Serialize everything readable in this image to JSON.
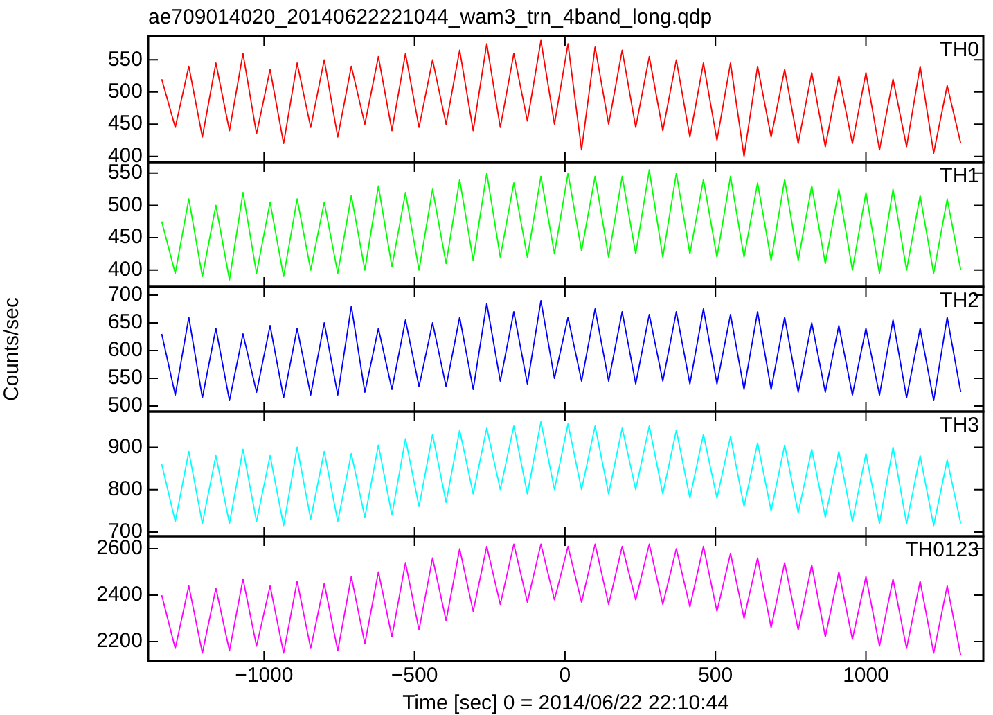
{
  "chart_data": [
    {
      "type": "line",
      "title": "ae709014020_20140622221044_wam3_trn_4band_long.qdp",
      "tick_labels": "y",
      "xlim": [
        -1385,
        1390
      ],
      "ylim": [
        391,
        587
      ],
      "yticks": [
        400,
        450,
        500,
        550
      ],
      "x": [
        -1340,
        -1295,
        -1250,
        -1205,
        -1160,
        -1115,
        -1070,
        -1025,
        -980,
        -935,
        -890,
        -845,
        -800,
        -755,
        -710,
        -665,
        -620,
        -575,
        -530,
        -485,
        -440,
        -395,
        -350,
        -305,
        -260,
        -215,
        -170,
        -125,
        -80,
        -35,
        10,
        55,
        100,
        145,
        190,
        235,
        280,
        325,
        370,
        415,
        460,
        505,
        550,
        595,
        640,
        685,
        730,
        775,
        820,
        865,
        910,
        955,
        1000,
        1045,
        1090,
        1135,
        1180,
        1225,
        1270,
        1315
      ],
      "series": [
        {
          "name": "TH0",
          "color": "#ff0000",
          "values": [
            520,
            445,
            540,
            430,
            545,
            440,
            560,
            435,
            535,
            420,
            545,
            445,
            550,
            430,
            540,
            450,
            555,
            440,
            560,
            445,
            550,
            450,
            565,
            440,
            575,
            445,
            560,
            455,
            580,
            450,
            575,
            410,
            570,
            450,
            565,
            445,
            555,
            440,
            550,
            430,
            545,
            425,
            545,
            400,
            540,
            430,
            535,
            420,
            530,
            415,
            525,
            420,
            530,
            410,
            520,
            415,
            540,
            405,
            510,
            420
          ]
        }
      ]
    },
    {
      "type": "line",
      "tick_labels": "y",
      "xlim": [
        -1385,
        1390
      ],
      "ylim": [
        374,
        567
      ],
      "yticks": [
        400,
        450,
        500,
        550
      ],
      "x": [
        -1340,
        -1295,
        -1250,
        -1205,
        -1160,
        -1115,
        -1070,
        -1025,
        -980,
        -935,
        -890,
        -845,
        -800,
        -755,
        -710,
        -665,
        -620,
        -575,
        -530,
        -485,
        -440,
        -395,
        -350,
        -305,
        -260,
        -215,
        -170,
        -125,
        -80,
        -35,
        10,
        55,
        100,
        145,
        190,
        235,
        280,
        325,
        370,
        415,
        460,
        505,
        550,
        595,
        640,
        685,
        730,
        775,
        820,
        865,
        910,
        955,
        1000,
        1045,
        1090,
        1135,
        1180,
        1225,
        1270,
        1315
      ],
      "series": [
        {
          "name": "TH1",
          "color": "#00ff00",
          "values": [
            475,
            395,
            510,
            390,
            500,
            385,
            520,
            395,
            505,
            390,
            510,
            400,
            505,
            395,
            515,
            400,
            530,
            405,
            520,
            400,
            525,
            410,
            540,
            415,
            550,
            420,
            535,
            420,
            545,
            425,
            550,
            430,
            545,
            420,
            545,
            425,
            555,
            420,
            550,
            425,
            540,
            420,
            545,
            420,
            535,
            415,
            540,
            415,
            530,
            410,
            525,
            400,
            520,
            395,
            525,
            400,
            515,
            395,
            510,
            400
          ]
        }
      ]
    },
    {
      "type": "line",
      "tick_labels": "y",
      "ylabel": "Counts/sec",
      "xlim": [
        -1385,
        1390
      ],
      "ylim": [
        490,
        715
      ],
      "yticks": [
        500,
        550,
        600,
        650,
        700
      ],
      "x": [
        -1340,
        -1295,
        -1250,
        -1205,
        -1160,
        -1115,
        -1070,
        -1025,
        -980,
        -935,
        -890,
        -845,
        -800,
        -755,
        -710,
        -665,
        -620,
        -575,
        -530,
        -485,
        -440,
        -395,
        -350,
        -305,
        -260,
        -215,
        -170,
        -125,
        -80,
        -35,
        10,
        55,
        100,
        145,
        190,
        235,
        280,
        325,
        370,
        415,
        460,
        505,
        550,
        595,
        640,
        685,
        730,
        775,
        820,
        865,
        910,
        955,
        1000,
        1045,
        1090,
        1135,
        1180,
        1225,
        1270,
        1315
      ],
      "series": [
        {
          "name": "TH2",
          "color": "#0000ff",
          "values": [
            630,
            520,
            660,
            515,
            640,
            510,
            630,
            525,
            645,
            515,
            640,
            520,
            650,
            520,
            680,
            525,
            640,
            530,
            655,
            535,
            650,
            535,
            660,
            530,
            685,
            545,
            670,
            540,
            690,
            550,
            660,
            545,
            675,
            545,
            670,
            540,
            665,
            545,
            670,
            540,
            675,
            540,
            665,
            530,
            670,
            530,
            660,
            525,
            650,
            525,
            645,
            520,
            640,
            520,
            655,
            515,
            640,
            510,
            660,
            525
          ]
        }
      ]
    },
    {
      "type": "line",
      "tick_labels": "y",
      "xlim": [
        -1385,
        1390
      ],
      "ylim": [
        690,
        984
      ],
      "yticks": [
        700,
        800,
        900
      ],
      "x": [
        -1340,
        -1295,
        -1250,
        -1205,
        -1160,
        -1115,
        -1070,
        -1025,
        -980,
        -935,
        -890,
        -845,
        -800,
        -755,
        -710,
        -665,
        -620,
        -575,
        -530,
        -485,
        -440,
        -395,
        -350,
        -305,
        -260,
        -215,
        -170,
        -125,
        -80,
        -35,
        10,
        55,
        100,
        145,
        190,
        235,
        280,
        325,
        370,
        415,
        460,
        505,
        550,
        595,
        640,
        685,
        730,
        775,
        820,
        865,
        910,
        955,
        1000,
        1045,
        1090,
        1135,
        1180,
        1225,
        1270,
        1315
      ],
      "series": [
        {
          "name": "TH3",
          "color": "#00ffff",
          "values": [
            860,
            725,
            890,
            720,
            880,
            720,
            895,
            725,
            880,
            715,
            900,
            730,
            890,
            725,
            885,
            735,
            905,
            740,
            920,
            760,
            930,
            770,
            940,
            790,
            945,
            800,
            950,
            790,
            960,
            800,
            955,
            800,
            950,
            790,
            945,
            800,
            950,
            790,
            940,
            780,
            930,
            780,
            925,
            760,
            910,
            750,
            905,
            745,
            895,
            735,
            890,
            725,
            885,
            720,
            900,
            720,
            880,
            715,
            870,
            720
          ]
        }
      ]
    },
    {
      "type": "line",
      "xlabel": "Time [sec] 0 = 2014/06/22 22:10:44",
      "xlim": [
        -1385,
        1390
      ],
      "ylim": [
        2116,
        2654
      ],
      "xticks": [
        {
          "value": -1000,
          "label": "−1000"
        },
        {
          "value": -500,
          "label": "−500"
        },
        0,
        500,
        1000
      ],
      "yticks": [
        2200,
        2400,
        2600
      ],
      "x": [
        -1340,
        -1295,
        -1250,
        -1205,
        -1160,
        -1115,
        -1070,
        -1025,
        -980,
        -935,
        -890,
        -845,
        -800,
        -755,
        -710,
        -665,
        -620,
        -575,
        -530,
        -485,
        -440,
        -395,
        -350,
        -305,
        -260,
        -215,
        -170,
        -125,
        -80,
        -35,
        10,
        55,
        100,
        145,
        190,
        235,
        280,
        325,
        370,
        415,
        460,
        505,
        550,
        595,
        640,
        685,
        730,
        775,
        820,
        865,
        910,
        955,
        1000,
        1045,
        1090,
        1135,
        1180,
        1225,
        1270,
        1315
      ],
      "series": [
        {
          "name": "TH0123",
          "color": "#ff00ff",
          "values": [
            2400,
            2170,
            2440,
            2150,
            2430,
            2160,
            2470,
            2180,
            2440,
            2150,
            2460,
            2170,
            2450,
            2160,
            2480,
            2190,
            2500,
            2220,
            2540,
            2250,
            2560,
            2290,
            2600,
            2330,
            2610,
            2360,
            2620,
            2370,
            2620,
            2380,
            2610,
            2370,
            2620,
            2360,
            2610,
            2380,
            2620,
            2360,
            2600,
            2350,
            2610,
            2330,
            2580,
            2300,
            2560,
            2260,
            2540,
            2250,
            2530,
            2220,
            2500,
            2210,
            2480,
            2180,
            2470,
            2170,
            2460,
            2150,
            2440,
            2140
          ]
        }
      ]
    }
  ]
}
